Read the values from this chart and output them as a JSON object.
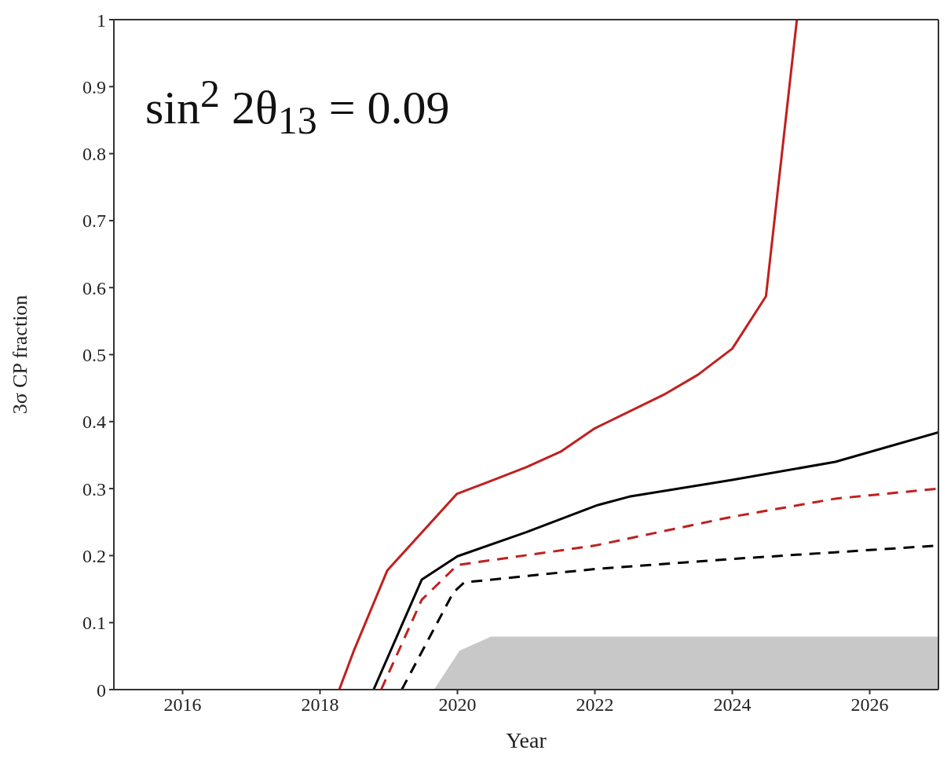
{
  "chart_data": {
    "type": "line",
    "xlabel": "Year",
    "ylabel": "3σ CP fraction",
    "annotations": [
      "sin$^{2}$ 2θ$_{13}$ = 0.09"
    ],
    "xlim": [
      2015,
      2027
    ],
    "xticks": [
      2016,
      2018,
      2020,
      2022,
      2024,
      2026
    ],
    "ylim": [
      0,
      1
    ],
    "yticks": [
      0,
      0.1,
      0.2,
      0.3,
      0.4,
      0.5,
      0.6,
      0.7,
      0.8,
      0.9,
      1
    ],
    "series": [
      {
        "type": "area",
        "color": "#c8c8c8",
        "x": [
          2019.66,
          2020.03,
          2020.49,
          2027
        ],
        "values": [
          0,
          0.058,
          0.079,
          0.079
        ]
      },
      {
        "color": "#c0201e",
        "line_style": "solid",
        "x": [
          2018.28,
          2018.5,
          2018.98,
          2019.99,
          2020.5,
          2021,
          2021.5,
          2022,
          2023,
          2023.5,
          2024,
          2024.49,
          2024.94
        ],
        "values": [
          0,
          0.06,
          0.178,
          0.292,
          0.312,
          0.332,
          0.355,
          0.39,
          0.44,
          0.47,
          0.509,
          0.587,
          1
        ]
      },
      {
        "color": "#000000",
        "line_style": "solid",
        "x": [
          2018.78,
          2019.48,
          2020,
          2021,
          2022.03,
          2022.5,
          2024,
          2025.5,
          2027
        ],
        "values": [
          0,
          0.164,
          0.199,
          0.235,
          0.275,
          0.288,
          0.313,
          0.34,
          0.384
        ]
      },
      {
        "color": "#c0201e",
        "line_style": "dashed",
        "x": [
          2018.89,
          2019.48,
          2020,
          2022,
          2024,
          2025.5,
          2027
        ],
        "values": [
          0,
          0.134,
          0.186,
          0.215,
          0.258,
          0.285,
          0.3
        ]
      },
      {
        "color": "#000000",
        "line_style": "dashed",
        "x": [
          2019.19,
          2019.94,
          2020.1,
          2022,
          2024,
          2025.5,
          2027
        ],
        "values": [
          0,
          0.145,
          0.16,
          0.18,
          0.195,
          0.205,
          0.215
        ]
      }
    ]
  }
}
